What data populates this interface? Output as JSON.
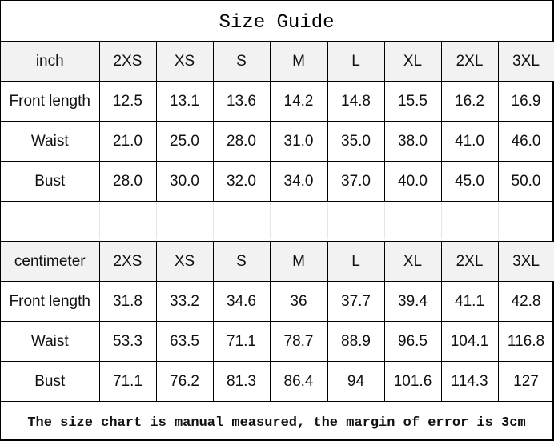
{
  "title": "Size Guide",
  "sizes": [
    "2XS",
    "XS",
    "S",
    "M",
    "L",
    "XL",
    "2XL",
    "3XL"
  ],
  "inch": {
    "unit": "inch",
    "rows": [
      {
        "label": "Front length",
        "values": [
          "12.5",
          "13.1",
          "13.6",
          "14.2",
          "14.8",
          "15.5",
          "16.2",
          "16.9"
        ]
      },
      {
        "label": "Waist",
        "values": [
          "21.0",
          "25.0",
          "28.0",
          "31.0",
          "35.0",
          "38.0",
          "41.0",
          "46.0"
        ]
      },
      {
        "label": "Bust",
        "values": [
          "28.0",
          "30.0",
          "32.0",
          "34.0",
          "37.0",
          "40.0",
          "45.0",
          "50.0"
        ]
      }
    ]
  },
  "centimeter": {
    "unit": "centimeter",
    "rows": [
      {
        "label": "Front length",
        "values": [
          "31.8",
          "33.2",
          "34.6",
          "36",
          "37.7",
          "39.4",
          "41.1",
          "42.8"
        ]
      },
      {
        "label": "Waist",
        "values": [
          "53.3",
          "63.5",
          "71.1",
          "78.7",
          "88.9",
          "96.5",
          "104.1",
          "116.8"
        ]
      },
      {
        "label": "Bust",
        "values": [
          "71.1",
          "76.2",
          "81.3",
          "86.4",
          "94",
          "101.6",
          "114.3",
          "127"
        ]
      }
    ]
  },
  "note": "The size chart is manual measured, the margin of error is 3cm"
}
